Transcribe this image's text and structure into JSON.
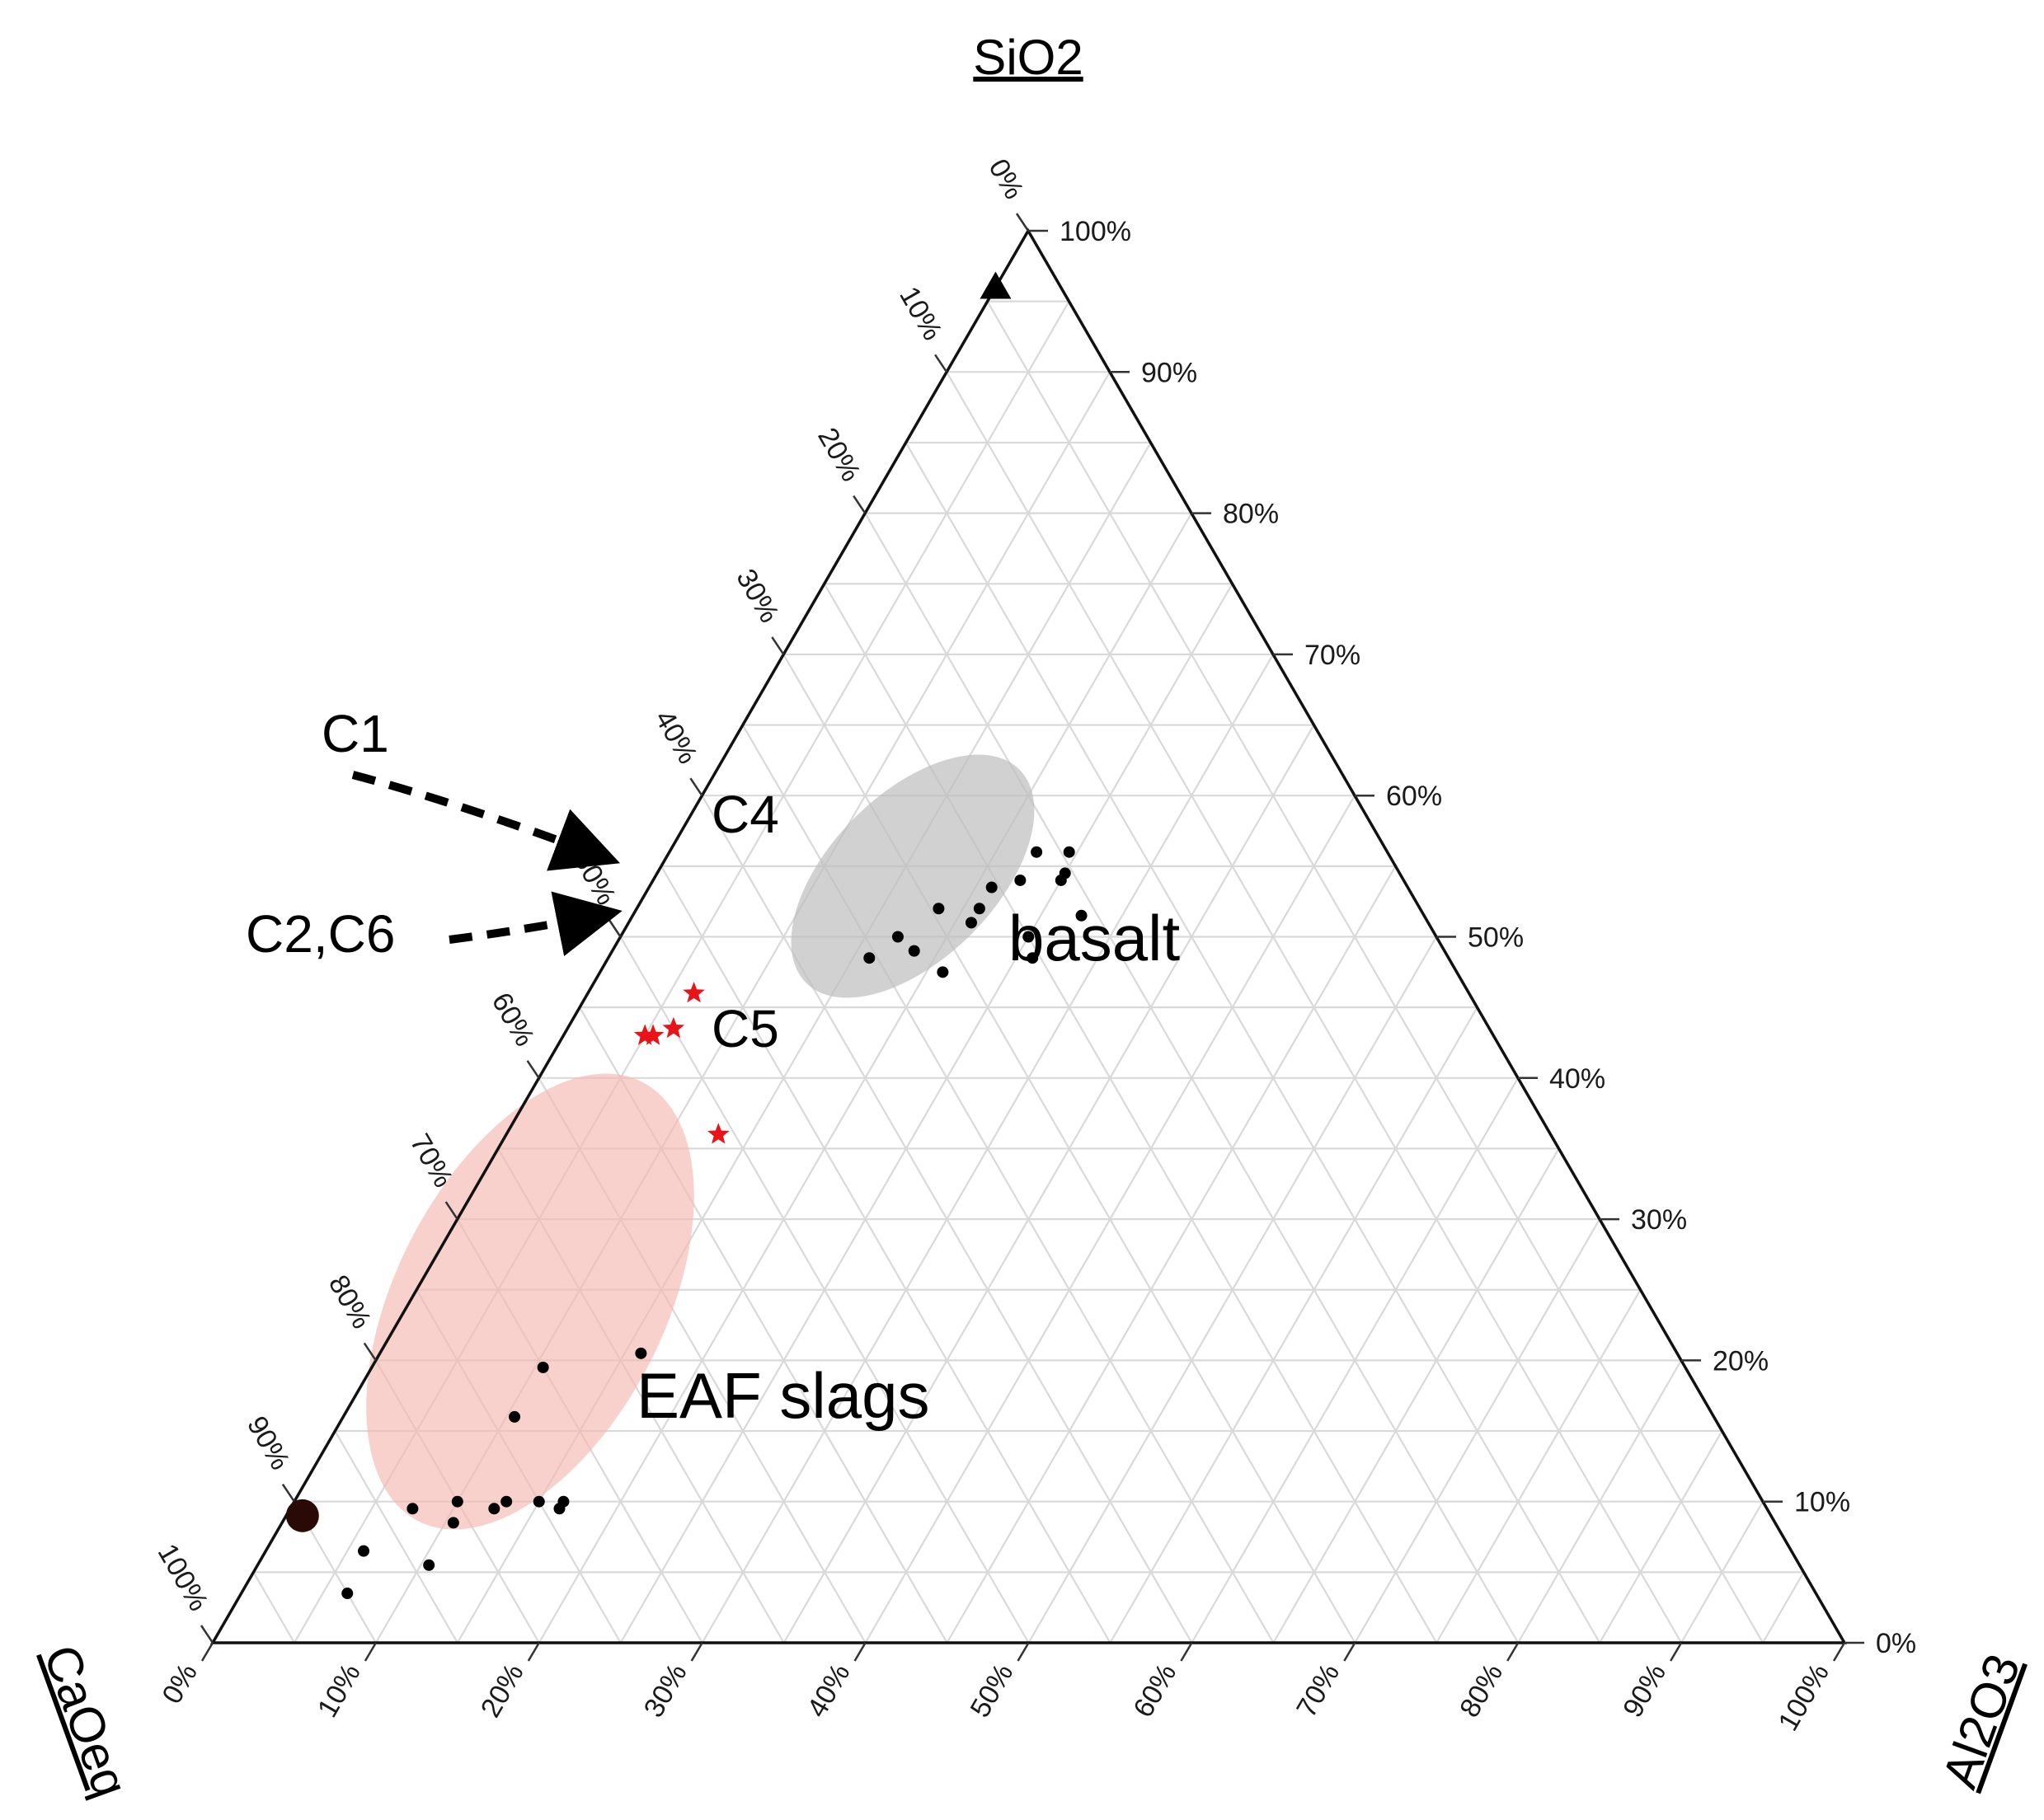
{
  "chart_data": {
    "type": "scatter",
    "subtype": "ternary",
    "axes": {
      "top": {
        "label": "SiO2"
      },
      "left": {
        "label": "CaOeq"
      },
      "right": {
        "label": "Al2O3"
      }
    },
    "tick_values": [
      0,
      10,
      20,
      30,
      40,
      50,
      60,
      70,
      80,
      90,
      100
    ],
    "tick_suffix": "%",
    "grid": true,
    "grid_step": 5,
    "groups": [
      {
        "name": "basalt",
        "fill_color": "#bdbdbd",
        "points": [
          {
            "ca": 21.5,
            "al": 22.5,
            "si": 56.0
          },
          {
            "ca": 19.5,
            "al": 24.5,
            "si": 56.0
          },
          {
            "ca": 21.0,
            "al": 25.0,
            "si": 54.0
          },
          {
            "ca": 20.5,
            "al": 25.0,
            "si": 54.5
          },
          {
            "ca": 23.5,
            "al": 22.5,
            "si": 54.0
          },
          {
            "ca": 25.5,
            "al": 21.0,
            "si": 53.5
          },
          {
            "ca": 21.0,
            "al": 27.5,
            "si": 51.5
          },
          {
            "ca": 29.5,
            "al": 18.5,
            "si": 52.0
          },
          {
            "ca": 27.0,
            "al": 21.0,
            "si": 52.0
          },
          {
            "ca": 28.0,
            "al": 21.0,
            "si": 51.0
          },
          {
            "ca": 25.0,
            "al": 25.0,
            "si": 50.0
          },
          {
            "ca": 32.5,
            "al": 18.5,
            "si": 49.0
          },
          {
            "ca": 33.0,
            "al": 17.0,
            "si": 50.0
          },
          {
            "ca": 31.5,
            "al": 21.0,
            "si": 47.5
          },
          {
            "ca": 25.5,
            "al": 26.0,
            "si": 48.5
          },
          {
            "ca": 35.5,
            "al": 16.0,
            "si": 48.5
          }
        ]
      },
      {
        "name": "EAF slags",
        "fill_color": "#f4b8b0",
        "points": [
          {
            "ca": 63.5,
            "al": 16.0,
            "si": 20.5
          },
          {
            "ca": 70.0,
            "al": 10.5,
            "si": 19.5
          },
          {
            "ca": 73.5,
            "al": 10.5,
            "si": 16.0
          },
          {
            "ca": 73.5,
            "al": 16.5,
            "si": 10.0
          },
          {
            "ca": 74.0,
            "al": 16.5,
            "si": 9.5
          },
          {
            "ca": 75.0,
            "al": 15.0,
            "si": 10.0
          },
          {
            "ca": 77.0,
            "al": 13.0,
            "si": 10.0
          },
          {
            "ca": 78.0,
            "al": 12.5,
            "si": 9.5
          },
          {
            "ca": 80.0,
            "al": 10.0,
            "si": 10.0
          },
          {
            "ca": 81.0,
            "al": 10.5,
            "si": 8.5
          },
          {
            "ca": 83.0,
            "al": 7.5,
            "si": 9.5
          },
          {
            "ca": 84.0,
            "al": 10.5,
            "si": 5.5
          },
          {
            "ca": 87.5,
            "al": 6.0,
            "si": 6.5
          },
          {
            "ca": 90.0,
            "al": 6.5,
            "si": 3.5
          }
        ]
      }
    ],
    "stars": [
      {
        "ca": 47.5,
        "al": 6.5,
        "si": 46.0,
        "label": "C4"
      },
      {
        "ca": 50.0,
        "al": 6.5,
        "si": 43.5
      },
      {
        "ca": 51.5,
        "al": 5.5,
        "si": 43.0
      },
      {
        "ca": 52.0,
        "al": 5.0,
        "si": 43.0
      },
      {
        "ca": 51.0,
        "al": 13.0,
        "si": 36.0,
        "label": "C5"
      }
    ],
    "star_color": "#e8141a",
    "special_points": [
      {
        "ca": 4.0,
        "al": 0.0,
        "si": 96.0,
        "marker": "triangle"
      },
      {
        "ca": 90.0,
        "al": 1.0,
        "si": 9.0,
        "marker": "large-circle"
      }
    ],
    "annotations": {
      "C1": "C1",
      "C2C6": "C2,C6",
      "C4": "C4",
      "C5": "C5",
      "basalt": "basalt",
      "eaf": "EAF slags"
    }
  }
}
